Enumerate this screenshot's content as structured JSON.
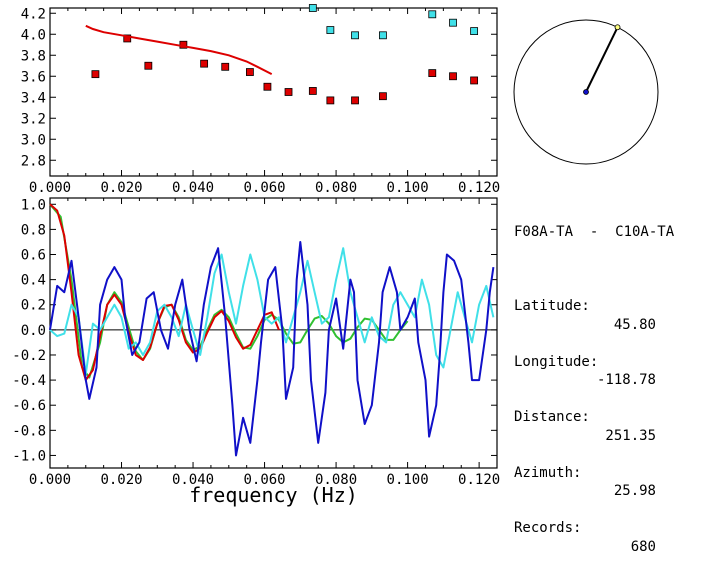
{
  "station_info": {
    "pair": "F08A-TA  -  C10A-TA",
    "rows": [
      {
        "label": "Latitude:",
        "value": "45.80"
      },
      {
        "label": "Longitude:",
        "value": "-118.78"
      },
      {
        "label": "Distance:",
        "value": "251.35"
      },
      {
        "label": "Azimuth:",
        "value": "25.98"
      },
      {
        "label": "Records:",
        "value": "680"
      }
    ]
  },
  "colors": {
    "red": "#dd0000",
    "cyan": "#40e0e8",
    "blue": "#1010c8",
    "green": "#30c030",
    "axis": "#000000"
  },
  "chart_data": [
    {
      "type": "scatter",
      "xlim": [
        0.0,
        0.125
      ],
      "ylim": [
        2.65,
        4.25
      ],
      "x_ticks": [
        "0.000",
        "0.020",
        "0.040",
        "0.060",
        "0.080",
        "0.100",
        "0.120"
      ],
      "y_ticks": [
        "2.8",
        "3.0",
        "3.2",
        "3.4",
        "3.6",
        "3.8",
        "4.0",
        "4.2"
      ],
      "series": [
        {
          "marker": "square",
          "color": "red",
          "points": [
            [
              0.0127,
              3.62
            ],
            [
              0.0216,
              3.96
            ],
            [
              0.0275,
              3.7
            ],
            [
              0.0373,
              3.9
            ],
            [
              0.0431,
              3.72
            ],
            [
              0.049,
              3.69
            ],
            [
              0.0559,
              3.64
            ],
            [
              0.0608,
              3.5
            ],
            [
              0.0667,
              3.45
            ],
            [
              0.0735,
              3.46
            ],
            [
              0.0784,
              3.37
            ],
            [
              0.0853,
              3.37
            ],
            [
              0.0931,
              3.41
            ],
            [
              0.1069,
              3.63
            ],
            [
              0.1127,
              3.6
            ],
            [
              0.1186,
              3.56
            ]
          ]
        },
        {
          "marker": "square",
          "color": "cyan",
          "points": [
            [
              0.0735,
              4.25
            ],
            [
              0.0784,
              4.04
            ],
            [
              0.0853,
              3.99
            ],
            [
              0.0931,
              3.99
            ],
            [
              0.1069,
              4.19
            ],
            [
              0.1127,
              4.11
            ],
            [
              0.1186,
              4.03
            ]
          ]
        },
        {
          "marker": "line",
          "color": "red",
          "points": [
            [
              0.01,
              4.08
            ],
            [
              0.012,
              4.05
            ],
            [
              0.015,
              4.02
            ],
            [
              0.02,
              3.99
            ],
            [
              0.025,
              3.96
            ],
            [
              0.03,
              3.93
            ],
            [
              0.035,
              3.9
            ],
            [
              0.04,
              3.87
            ],
            [
              0.045,
              3.84
            ],
            [
              0.05,
              3.8
            ],
            [
              0.055,
              3.74
            ],
            [
              0.058,
              3.69
            ],
            [
              0.062,
              3.62
            ]
          ]
        }
      ]
    },
    {
      "type": "line",
      "xlabel": "frequency (Hz)",
      "xlim": [
        0.0,
        0.125
      ],
      "ylim": [
        -1.1,
        1.05
      ],
      "x_ticks": [
        "0.000",
        "0.020",
        "0.040",
        "0.060",
        "0.080",
        "0.100",
        "0.120"
      ],
      "y_ticks": [
        "1.0",
        "0.8",
        "0.6",
        "0.4",
        "0.2",
        "0.0",
        "-0.2",
        "-0.4",
        "-0.6",
        "-0.8",
        "-1.0"
      ],
      "series": [
        {
          "color": "green",
          "points": [
            [
              0.0,
              1.0
            ],
            [
              0.003,
              0.9
            ],
            [
              0.006,
              0.4
            ],
            [
              0.009,
              -0.3
            ],
            [
              0.011,
              -0.38
            ],
            [
              0.014,
              -0.1
            ],
            [
              0.016,
              0.2
            ],
            [
              0.018,
              0.3
            ],
            [
              0.02,
              0.22
            ],
            [
              0.022,
              0.02
            ],
            [
              0.024,
              -0.17
            ],
            [
              0.026,
              -0.24
            ],
            [
              0.028,
              -0.15
            ],
            [
              0.03,
              0.05
            ],
            [
              0.032,
              0.18
            ],
            [
              0.034,
              0.2
            ],
            [
              0.036,
              0.1
            ],
            [
              0.038,
              -0.08
            ],
            [
              0.04,
              -0.16
            ],
            [
              0.042,
              -0.13
            ],
            [
              0.044,
              0.0
            ],
            [
              0.046,
              0.12
            ],
            [
              0.048,
              0.16
            ],
            [
              0.05,
              0.1
            ],
            [
              0.052,
              -0.03
            ],
            [
              0.054,
              -0.14
            ],
            [
              0.056,
              -0.15
            ],
            [
              0.058,
              -0.05
            ],
            [
              0.06,
              0.08
            ],
            [
              0.062,
              0.12
            ],
            [
              0.064,
              0.08
            ],
            [
              0.066,
              -0.03
            ],
            [
              0.068,
              -0.11
            ],
            [
              0.07,
              -0.1
            ],
            [
              0.072,
              0.0
            ],
            [
              0.074,
              0.09
            ],
            [
              0.076,
              0.11
            ],
            [
              0.078,
              0.05
            ],
            [
              0.08,
              -0.05
            ],
            [
              0.082,
              -0.1
            ],
            [
              0.084,
              -0.07
            ],
            [
              0.086,
              0.02
            ],
            [
              0.088,
              0.09
            ],
            [
              0.09,
              0.08
            ],
            [
              0.092,
              0.0
            ],
            [
              0.094,
              -0.08
            ],
            [
              0.096,
              -0.08
            ],
            [
              0.098,
              0.0
            ],
            [
              0.1,
              0.07
            ]
          ]
        },
        {
          "color": "red",
          "points": [
            [
              0.0,
              1.0
            ],
            [
              0.002,
              0.95
            ],
            [
              0.004,
              0.75
            ],
            [
              0.006,
              0.3
            ],
            [
              0.008,
              -0.2
            ],
            [
              0.01,
              -0.4
            ],
            [
              0.012,
              -0.32
            ],
            [
              0.014,
              -0.05
            ],
            [
              0.016,
              0.2
            ],
            [
              0.018,
              0.28
            ],
            [
              0.02,
              0.2
            ],
            [
              0.022,
              -0.02
            ],
            [
              0.024,
              -0.2
            ],
            [
              0.026,
              -0.24
            ],
            [
              0.028,
              -0.14
            ],
            [
              0.03,
              0.05
            ],
            [
              0.032,
              0.19
            ],
            [
              0.034,
              0.2
            ],
            [
              0.036,
              0.08
            ],
            [
              0.038,
              -0.1
            ],
            [
              0.04,
              -0.18
            ],
            [
              0.042,
              -0.15
            ],
            [
              0.044,
              -0.02
            ],
            [
              0.046,
              0.1
            ],
            [
              0.048,
              0.15
            ],
            [
              0.05,
              0.07
            ],
            [
              0.052,
              -0.06
            ],
            [
              0.054,
              -0.15
            ],
            [
              0.056,
              -0.12
            ],
            [
              0.058,
              0.0
            ],
            [
              0.06,
              0.12
            ],
            [
              0.062,
              0.14
            ],
            [
              0.064,
              0.0
            ]
          ]
        },
        {
          "color": "cyan",
          "points": [
            [
              0.0,
              0.0
            ],
            [
              0.002,
              -0.05
            ],
            [
              0.004,
              -0.03
            ],
            [
              0.006,
              0.2
            ],
            [
              0.008,
              0.1
            ],
            [
              0.01,
              -0.35
            ],
            [
              0.012,
              0.05
            ],
            [
              0.014,
              0.0
            ],
            [
              0.016,
              0.1
            ],
            [
              0.018,
              0.2
            ],
            [
              0.02,
              0.1
            ],
            [
              0.022,
              -0.15
            ],
            [
              0.024,
              -0.1
            ],
            [
              0.026,
              -0.2
            ],
            [
              0.028,
              -0.1
            ],
            [
              0.03,
              0.15
            ],
            [
              0.032,
              0.2
            ],
            [
              0.034,
              0.1
            ],
            [
              0.036,
              -0.05
            ],
            [
              0.038,
              0.2
            ],
            [
              0.04,
              0.0
            ],
            [
              0.042,
              -0.2
            ],
            [
              0.044,
              0.1
            ],
            [
              0.046,
              0.45
            ],
            [
              0.048,
              0.6
            ],
            [
              0.05,
              0.3
            ],
            [
              0.052,
              0.05
            ],
            [
              0.054,
              0.35
            ],
            [
              0.056,
              0.6
            ],
            [
              0.058,
              0.4
            ],
            [
              0.06,
              0.1
            ],
            [
              0.062,
              0.05
            ],
            [
              0.064,
              0.1
            ],
            [
              0.066,
              -0.1
            ],
            [
              0.068,
              0.1
            ],
            [
              0.07,
              0.3
            ],
            [
              0.072,
              0.55
            ],
            [
              0.074,
              0.3
            ],
            [
              0.076,
              0.05
            ],
            [
              0.078,
              0.1
            ],
            [
              0.08,
              0.4
            ],
            [
              0.082,
              0.65
            ],
            [
              0.084,
              0.3
            ],
            [
              0.086,
              0.1
            ],
            [
              0.088,
              -0.1
            ],
            [
              0.09,
              0.1
            ],
            [
              0.092,
              -0.05
            ],
            [
              0.094,
              -0.1
            ],
            [
              0.096,
              0.2
            ],
            [
              0.098,
              0.3
            ],
            [
              0.1,
              0.2
            ],
            [
              0.102,
              0.1
            ],
            [
              0.104,
              0.4
            ],
            [
              0.106,
              0.2
            ],
            [
              0.108,
              -0.2
            ],
            [
              0.11,
              -0.3
            ],
            [
              0.112,
              0.0
            ],
            [
              0.114,
              0.3
            ],
            [
              0.116,
              0.1
            ],
            [
              0.118,
              -0.1
            ],
            [
              0.12,
              0.2
            ],
            [
              0.122,
              0.35
            ],
            [
              0.124,
              0.1
            ]
          ]
        },
        {
          "color": "blue",
          "points": [
            [
              0.0,
              0.0
            ],
            [
              0.002,
              0.35
            ],
            [
              0.004,
              0.3
            ],
            [
              0.006,
              0.55
            ],
            [
              0.008,
              0.1
            ],
            [
              0.01,
              -0.4
            ],
            [
              0.011,
              -0.55
            ],
            [
              0.013,
              -0.3
            ],
            [
              0.014,
              0.2
            ],
            [
              0.016,
              0.4
            ],
            [
              0.018,
              0.5
            ],
            [
              0.02,
              0.4
            ],
            [
              0.021,
              0.1
            ],
            [
              0.023,
              -0.2
            ],
            [
              0.025,
              -0.1
            ],
            [
              0.027,
              0.25
            ],
            [
              0.029,
              0.3
            ],
            [
              0.031,
              0.0
            ],
            [
              0.033,
              -0.15
            ],
            [
              0.035,
              0.2
            ],
            [
              0.037,
              0.4
            ],
            [
              0.039,
              0.0
            ],
            [
              0.041,
              -0.25
            ],
            [
              0.043,
              0.2
            ],
            [
              0.045,
              0.5
            ],
            [
              0.047,
              0.65
            ],
            [
              0.049,
              0.1
            ],
            [
              0.051,
              -0.6
            ],
            [
              0.052,
              -1.0
            ],
            [
              0.054,
              -0.7
            ],
            [
              0.056,
              -0.9
            ],
            [
              0.058,
              -0.4
            ],
            [
              0.059,
              -0.1
            ],
            [
              0.061,
              0.4
            ],
            [
              0.063,
              0.5
            ],
            [
              0.065,
              0.0
            ],
            [
              0.066,
              -0.55
            ],
            [
              0.068,
              -0.3
            ],
            [
              0.069,
              0.4
            ],
            [
              0.07,
              0.7
            ],
            [
              0.072,
              0.2
            ],
            [
              0.073,
              -0.4
            ],
            [
              0.075,
              -0.9
            ],
            [
              0.077,
              -0.5
            ],
            [
              0.078,
              0.0
            ],
            [
              0.08,
              0.25
            ],
            [
              0.082,
              -0.15
            ],
            [
              0.084,
              0.4
            ],
            [
              0.085,
              0.3
            ],
            [
              0.086,
              -0.4
            ],
            [
              0.088,
              -0.75
            ],
            [
              0.09,
              -0.6
            ],
            [
              0.092,
              -0.1
            ],
            [
              0.093,
              0.3
            ],
            [
              0.095,
              0.5
            ],
            [
              0.097,
              0.3
            ],
            [
              0.098,
              0.0
            ],
            [
              0.1,
              0.1
            ],
            [
              0.102,
              0.25
            ],
            [
              0.103,
              -0.1
            ],
            [
              0.105,
              -0.4
            ],
            [
              0.106,
              -0.85
            ],
            [
              0.108,
              -0.6
            ],
            [
              0.109,
              -0.2
            ],
            [
              0.11,
              0.3
            ],
            [
              0.111,
              0.6
            ],
            [
              0.113,
              0.55
            ],
            [
              0.115,
              0.4
            ],
            [
              0.117,
              -0.1
            ],
            [
              0.118,
              -0.4
            ],
            [
              0.12,
              -0.4
            ],
            [
              0.122,
              0.0
            ],
            [
              0.123,
              0.3
            ],
            [
              0.124,
              0.5
            ]
          ]
        }
      ]
    },
    {
      "type": "azimuth-dial",
      "angle_deg": 25.98
    }
  ]
}
